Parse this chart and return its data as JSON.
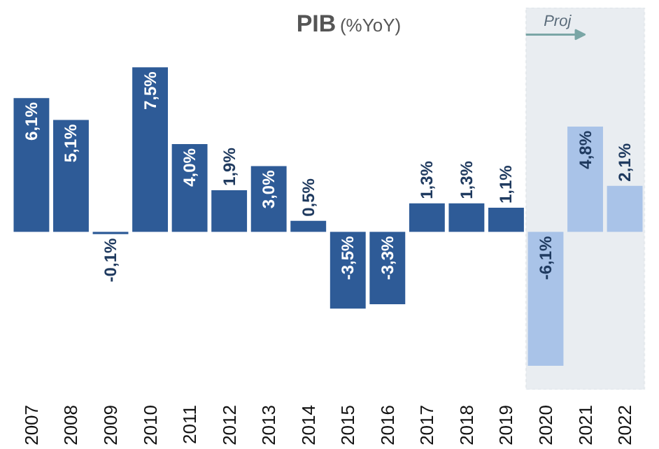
{
  "chart_data": {
    "type": "bar",
    "title": "PIB (%YoY)",
    "data_labels": true,
    "categories": [
      "2007",
      "2008",
      "2009",
      "2010",
      "2011",
      "2012",
      "2013",
      "2014",
      "2015",
      "2016",
      "2017",
      "2018",
      "2019",
      "2020",
      "2021",
      "2022"
    ],
    "values": [
      6.1,
      5.1,
      -0.1,
      7.5,
      4.0,
      1.9,
      3.0,
      0.5,
      -3.5,
      -3.3,
      1.3,
      1.3,
      1.1,
      -6.1,
      4.8,
      2.1
    ],
    "value_labels": [
      "6,1%",
      "5,1%",
      "-0,1%",
      "7,5%",
      "4,0%",
      "1,9%",
      "3,0%",
      "0,5%",
      "-3,5%",
      "-3,3%",
      "1,3%",
      "1,3%",
      "1,1%",
      "-6,1%",
      "4,8%",
      "2,1%"
    ],
    "colors": [
      "#2e5b97",
      "#2e5b97",
      "#2e5b97",
      "#2e5b97",
      "#2e5b97",
      "#2e5b97",
      "#2e5b97",
      "#2e5b97",
      "#2e5b97",
      "#2e5b97",
      "#2e5b97",
      "#2e5b97",
      "#2e5b97",
      "#a9c3e8",
      "#a9c3e8",
      "#a9c3e8"
    ],
    "bands": [
      {
        "axis": "x",
        "from": "2020",
        "to": "2022",
        "label": "Proj",
        "color": "#e9edf1"
      }
    ],
    "grid": false
  }
}
